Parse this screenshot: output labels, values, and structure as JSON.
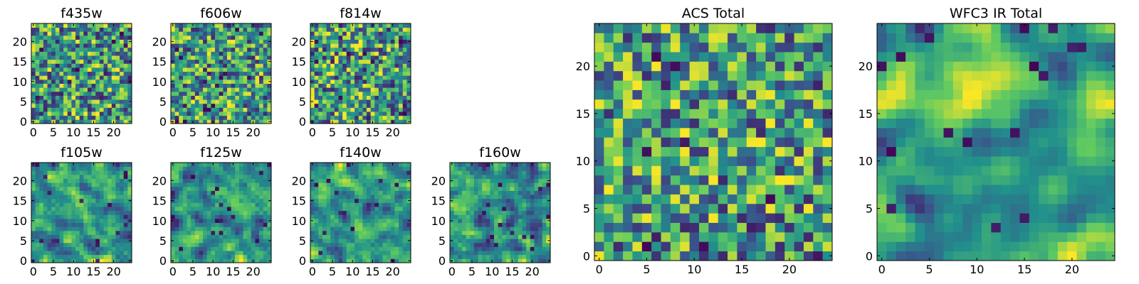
{
  "figure": {
    "title": ""
  },
  "colormap": {
    "name": "viridis",
    "stops": [
      "#440154",
      "#3b528b",
      "#21918c",
      "#5ec962",
      "#fde725"
    ]
  },
  "chart_data": [
    {
      "type": "heatmap",
      "title": "f435w",
      "grid_size": 25,
      "xlim": [
        0,
        24
      ],
      "ylim": [
        0,
        24
      ],
      "x_ticks": [
        0,
        5,
        10,
        15,
        20
      ],
      "y_ticks": [
        0,
        5,
        10,
        15,
        20
      ],
      "legend": false,
      "noise_seed": 435,
      "smoothness": 0
    },
    {
      "type": "heatmap",
      "title": "f606w",
      "grid_size": 25,
      "xlim": [
        0,
        24
      ],
      "ylim": [
        0,
        24
      ],
      "x_ticks": [
        0,
        5,
        10,
        15,
        20
      ],
      "y_ticks": [
        0,
        5,
        10,
        15,
        20
      ],
      "legend": false,
      "noise_seed": 606,
      "smoothness": 0
    },
    {
      "type": "heatmap",
      "title": "f814w",
      "grid_size": 25,
      "xlim": [
        0,
        24
      ],
      "ylim": [
        0,
        24
      ],
      "x_ticks": [
        0,
        5,
        10,
        15,
        20
      ],
      "y_ticks": [
        0,
        5,
        10,
        15,
        20
      ],
      "legend": false,
      "noise_seed": 814,
      "smoothness": 0
    },
    {
      "type": "heatmap",
      "title": "f105w",
      "grid_size": 25,
      "xlim": [
        0,
        24
      ],
      "ylim": [
        0,
        24
      ],
      "x_ticks": [
        0,
        5,
        10,
        15,
        20
      ],
      "y_ticks": [
        0,
        5,
        10,
        15,
        20
      ],
      "legend": false,
      "noise_seed": 105,
      "smoothness": 1
    },
    {
      "type": "heatmap",
      "title": "f125w",
      "grid_size": 25,
      "xlim": [
        0,
        24
      ],
      "ylim": [
        0,
        24
      ],
      "x_ticks": [
        0,
        5,
        10,
        15,
        20
      ],
      "y_ticks": [
        0,
        5,
        10,
        15,
        20
      ],
      "legend": false,
      "noise_seed": 125,
      "smoothness": 1
    },
    {
      "type": "heatmap",
      "title": "f140w",
      "grid_size": 25,
      "xlim": [
        0,
        24
      ],
      "ylim": [
        0,
        24
      ],
      "x_ticks": [
        0,
        5,
        10,
        15,
        20
      ],
      "y_ticks": [
        0,
        5,
        10,
        15,
        20
      ],
      "legend": false,
      "noise_seed": 140,
      "smoothness": 1
    },
    {
      "type": "heatmap",
      "title": "f160w",
      "grid_size": 25,
      "xlim": [
        0,
        24
      ],
      "ylim": [
        0,
        24
      ],
      "x_ticks": [
        0,
        5,
        10,
        15,
        20
      ],
      "y_ticks": [
        0,
        5,
        10,
        15,
        20
      ],
      "legend": false,
      "noise_seed": 160,
      "smoothness": 1
    },
    {
      "type": "heatmap",
      "title": "ACS Total",
      "grid_size": 25,
      "xlim": [
        0,
        24
      ],
      "ylim": [
        0,
        24
      ],
      "x_ticks": [
        0,
        5,
        10,
        15,
        20
      ],
      "y_ticks": [
        0,
        5,
        10,
        15,
        20
      ],
      "legend": false,
      "noise_seed": 999,
      "smoothness": 0
    },
    {
      "type": "heatmap",
      "title": "WFC3 IR Total",
      "grid_size": 25,
      "xlim": [
        0,
        24
      ],
      "ylim": [
        0,
        24
      ],
      "x_ticks": [
        0,
        5,
        10,
        15,
        20
      ],
      "y_ticks": [
        0,
        5,
        10,
        15,
        20
      ],
      "legend": false,
      "noise_seed": 777,
      "smoothness": 2
    }
  ]
}
